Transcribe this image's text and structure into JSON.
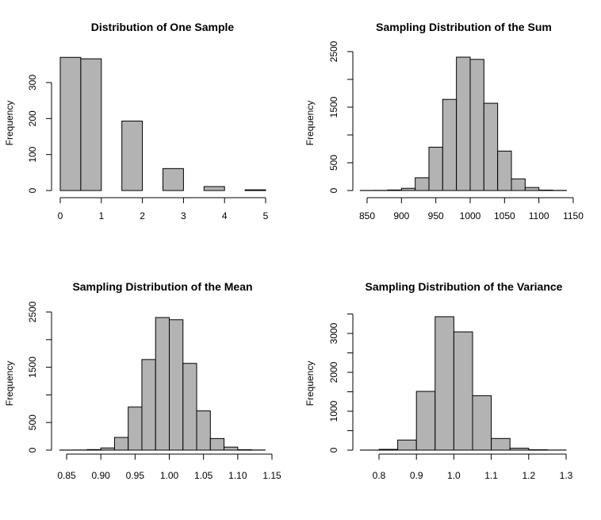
{
  "chart_data": [
    {
      "type": "bar",
      "title": "Distribution of One Sample",
      "xlabel": "",
      "ylabel": "Frequency",
      "breaks": [
        0,
        0.5,
        1,
        1.5,
        2,
        2.5,
        3,
        3.5,
        4,
        4.5,
        5
      ],
      "values": [
        370,
        366,
        0,
        193,
        0,
        61,
        0,
        11,
        0,
        2
      ],
      "xticks": [
        0,
        1,
        2,
        3,
        4,
        5
      ],
      "xtick_labels": [
        "0",
        "1",
        "2",
        "3",
        "4",
        "5"
      ],
      "yticks": [
        0,
        100,
        200,
        300
      ],
      "ytick_labels": [
        "0",
        "100",
        "200",
        "300"
      ],
      "xlim": [
        0,
        5
      ],
      "ylim": [
        0,
        370
      ],
      "bar_color": "#b3b3b3"
    },
    {
      "type": "bar",
      "title": "Sampling Distribution of the Sum",
      "xlabel": "",
      "ylabel": "Frequency",
      "breaks": [
        840,
        860,
        880,
        900,
        920,
        940,
        960,
        980,
        1000,
        1020,
        1040,
        1060,
        1080,
        1100,
        1120,
        1140
      ],
      "values": [
        2,
        3,
        10,
        40,
        230,
        780,
        1640,
        2400,
        2360,
        1570,
        710,
        210,
        55,
        8,
        3
      ],
      "xticks": [
        850,
        900,
        950,
        1000,
        1050,
        1100,
        1150
      ],
      "xtick_labels": [
        "850",
        "900",
        "950",
        "1000",
        "1050",
        "1100",
        "1150"
      ],
      "yticks": [
        0,
        500,
        1000,
        1500,
        2000,
        2500
      ],
      "ytick_labels": [
        "0",
        "500",
        "",
        "1500",
        "",
        "2500"
      ],
      "xlim": [
        850,
        1150
      ],
      "ylim": [
        0,
        2500
      ],
      "bar_color": "#b3b3b3"
    },
    {
      "type": "bar",
      "title": "Sampling Distribution of the Mean",
      "xlabel": "",
      "ylabel": "Frequency",
      "breaks": [
        0.84,
        0.86,
        0.88,
        0.9,
        0.92,
        0.94,
        0.96,
        0.98,
        1.0,
        1.02,
        1.04,
        1.06,
        1.08,
        1.1,
        1.12,
        1.14
      ],
      "values": [
        2,
        3,
        10,
        40,
        230,
        780,
        1640,
        2400,
        2360,
        1570,
        710,
        210,
        55,
        8,
        3
      ],
      "xticks": [
        0.85,
        0.9,
        0.95,
        1.0,
        1.05,
        1.1,
        1.15
      ],
      "xtick_labels": [
        "0.85",
        "0.90",
        "0.95",
        "1.00",
        "1.05",
        "1.10",
        "1.15"
      ],
      "yticks": [
        0,
        500,
        1000,
        1500,
        2000,
        2500
      ],
      "ytick_labels": [
        "0",
        "500",
        "",
        "1500",
        "",
        "2500"
      ],
      "xlim": [
        0.85,
        1.15
      ],
      "ylim": [
        0,
        2500
      ],
      "bar_color": "#b3b3b3"
    },
    {
      "type": "bar",
      "title": "Sampling Distribution of the Variance",
      "xlabel": "",
      "ylabel": "Frequency",
      "breaks": [
        0.75,
        0.8,
        0.85,
        0.9,
        0.95,
        1.0,
        1.05,
        1.1,
        1.15,
        1.2,
        1.25,
        1.3
      ],
      "values": [
        2,
        20,
        260,
        1510,
        3430,
        3040,
        1400,
        300,
        50,
        10,
        3
      ],
      "xticks": [
        0.8,
        0.9,
        1.0,
        1.1,
        1.2,
        1.3
      ],
      "xtick_labels": [
        "0.8",
        "0.9",
        "1.0",
        "1.1",
        "1.2",
        "1.3"
      ],
      "yticks": [
        0,
        500,
        1000,
        1500,
        2000,
        2500,
        3000,
        3500
      ],
      "ytick_labels": [
        "0",
        "",
        "1000",
        "",
        "2000",
        "",
        "3000",
        ""
      ],
      "xlim": [
        0.8,
        1.3
      ],
      "ylim": [
        0,
        3500
      ],
      "bar_color": "#b3b3b3"
    }
  ]
}
